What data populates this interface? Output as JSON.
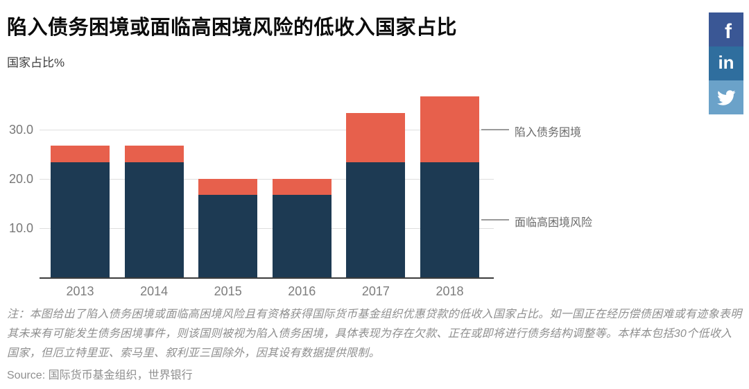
{
  "header": {
    "title": "陷入债务困境或面临高困境风险的低收入国家占比",
    "subtitle": "国家占比%"
  },
  "share": {
    "facebook_glyph": "f",
    "linkedin_glyph": "in",
    "facebook_color": "#3a5795",
    "linkedin_color": "#2f6e9e",
    "twitter_color": "#6ba2c9"
  },
  "chart_data": {
    "type": "bar",
    "stacked": true,
    "categories": [
      "2013",
      "2014",
      "2015",
      "2016",
      "2017",
      "2018"
    ],
    "series": [
      {
        "name": "面临高困境风险",
        "color": "#1d3a53",
        "values": [
          23.3,
          23.3,
          16.7,
          16.7,
          23.3,
          23.3
        ]
      },
      {
        "name": "陷入债务困境",
        "color": "#e7604c",
        "values": [
          3.4,
          3.4,
          3.3,
          3.3,
          10.0,
          13.4
        ]
      }
    ],
    "stack_totals": [
      26.7,
      26.7,
      20.0,
      20.0,
      33.3,
      36.7
    ],
    "title": "陷入债务困境或面临高困境风险的低收入国家占比",
    "xlabel": "",
    "ylabel": "国家占比%",
    "yticks": [
      10.0,
      20.0,
      30.0
    ],
    "ytick_labels": [
      "10.0",
      "20.0",
      "30.0"
    ],
    "ylim": [
      0,
      39.4
    ],
    "grid": true,
    "legend_position": "right-callouts",
    "annotations": [
      {
        "label": "陷入债务困境",
        "points_to": "top-series"
      },
      {
        "label": "面临高困境风险",
        "points_to": "bottom-series"
      }
    ],
    "axis_color": "#3c3c3c",
    "gridline_color": "#dedede"
  },
  "footer": {
    "note": "注：本图给出了陷入债务困境或面临高困境风险且有资格获得国际货币基金组织优惠贷款的低收入国家占比。如一国正在经历偿债困难或有迹象表明其未来有可能发生债务困境事件，则该国则被视为陷入债务困境，具体表现为存在欠款、正在或即将进行债务结构调整等。本样本包括30个低收入国家，但厄立特里亚、索马里、叙利亚三国除外，因其设有数据提供限制。",
    "source": "Source: 国际货币基金组织，世界银行"
  }
}
